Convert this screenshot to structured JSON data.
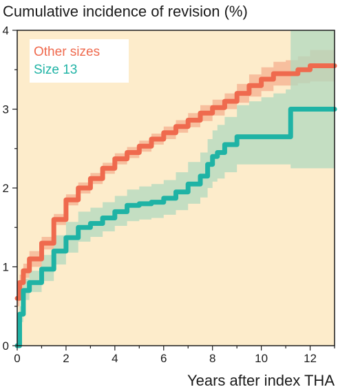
{
  "chart_data": {
    "type": "line",
    "title": "Cumulative incidence of revision (%)",
    "xlabel": "Years after index THA",
    "ylabel": "",
    "xlim": [
      0,
      13
    ],
    "ylim": [
      0,
      4
    ],
    "xticks": [
      0,
      2,
      4,
      6,
      8,
      10,
      12
    ],
    "yticks": [
      0,
      1,
      2,
      3,
      4
    ],
    "grid": false,
    "background_color": "#fdeccb",
    "legend_position": "top-left",
    "series": [
      {
        "name": "Other sizes",
        "color": "#ef6a4e",
        "band_color": "#f6b796",
        "x": [
          0,
          0.1,
          0.25,
          0.5,
          1,
          1.5,
          2,
          2.5,
          3,
          3.5,
          4,
          4.5,
          5,
          5.5,
          6,
          6.5,
          7,
          7.5,
          8,
          8.5,
          9,
          9.5,
          10,
          10.5,
          11,
          11.5,
          12,
          12.5,
          13
        ],
        "y": [
          0.6,
          0.8,
          0.95,
          1.1,
          1.3,
          1.6,
          1.85,
          2.0,
          2.12,
          2.25,
          2.37,
          2.45,
          2.53,
          2.62,
          2.7,
          2.78,
          2.86,
          2.95,
          3.02,
          3.1,
          3.2,
          3.3,
          3.38,
          3.45,
          3.45,
          3.5,
          3.55,
          3.55,
          3.55
        ],
        "lower": [
          0.5,
          0.7,
          0.86,
          1.0,
          1.22,
          1.53,
          1.78,
          1.93,
          2.05,
          2.18,
          2.3,
          2.38,
          2.46,
          2.55,
          2.62,
          2.7,
          2.77,
          2.85,
          2.92,
          3.0,
          3.08,
          3.16,
          3.23,
          3.3,
          3.3,
          3.33,
          3.35,
          3.35,
          3.35
        ],
        "upper": [
          0.7,
          0.9,
          1.04,
          1.2,
          1.38,
          1.67,
          1.92,
          2.07,
          2.19,
          2.32,
          2.44,
          2.52,
          2.6,
          2.69,
          2.78,
          2.86,
          2.95,
          3.05,
          3.12,
          3.2,
          3.32,
          3.44,
          3.53,
          3.6,
          3.62,
          3.67,
          3.75,
          3.75,
          3.75
        ]
      },
      {
        "name": "Size 13",
        "color": "#1fb3a5",
        "band_color": "#b0d9bf",
        "x": [
          0,
          0.1,
          0.25,
          0.5,
          1,
          1.5,
          2,
          2.5,
          3,
          3.5,
          4,
          4.5,
          5,
          5.5,
          6,
          6.5,
          7,
          7.5,
          7.8,
          8,
          8.2,
          8.5,
          9,
          9.5,
          10,
          10.5,
          11,
          11.2,
          12,
          13
        ],
        "y": [
          0,
          0.4,
          0.7,
          0.8,
          0.97,
          1.2,
          1.37,
          1.5,
          1.55,
          1.62,
          1.7,
          1.78,
          1.8,
          1.82,
          1.87,
          1.95,
          2.05,
          2.15,
          2.3,
          2.4,
          2.45,
          2.55,
          2.65,
          2.65,
          2.65,
          2.65,
          2.65,
          3.0,
          3.0,
          3.0
        ],
        "lower": [
          0,
          0.3,
          0.58,
          0.68,
          0.82,
          1.03,
          1.18,
          1.32,
          1.38,
          1.45,
          1.52,
          1.58,
          1.6,
          1.62,
          1.66,
          1.72,
          1.8,
          1.88,
          2.0,
          2.08,
          2.12,
          2.2,
          2.3,
          2.3,
          2.3,
          2.3,
          2.3,
          2.25,
          2.25,
          2.25
        ],
        "upper": [
          0,
          0.5,
          0.85,
          0.95,
          1.15,
          1.4,
          1.57,
          1.7,
          1.75,
          1.82,
          1.9,
          1.98,
          2.02,
          2.05,
          2.1,
          2.2,
          2.33,
          2.45,
          2.62,
          2.73,
          2.8,
          2.9,
          3.05,
          3.1,
          3.15,
          3.2,
          3.25,
          4.0,
          4.0,
          4.0
        ]
      }
    ]
  }
}
